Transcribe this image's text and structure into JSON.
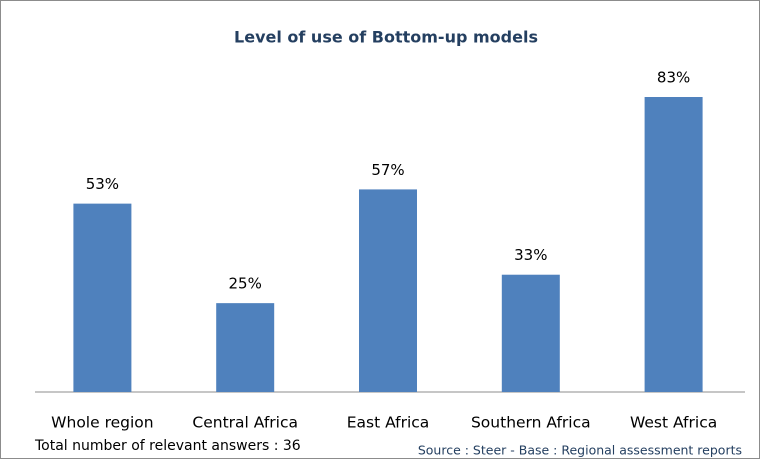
{
  "chart_data": {
    "type": "bar",
    "title": "Level of use of Bottom-up models",
    "categories": [
      "Whole region",
      "Central Africa",
      "East Africa",
      "Southern Africa",
      "West Africa"
    ],
    "values": [
      53,
      25,
      57,
      33,
      83
    ],
    "value_labels": [
      "53%",
      "25%",
      "57%",
      "33%",
      "83%"
    ],
    "color": "#4f81bd",
    "annotations": [
      "Total number of relevant answers : 36",
      "Source : Steer - Base : Regional assessment reports"
    ]
  }
}
